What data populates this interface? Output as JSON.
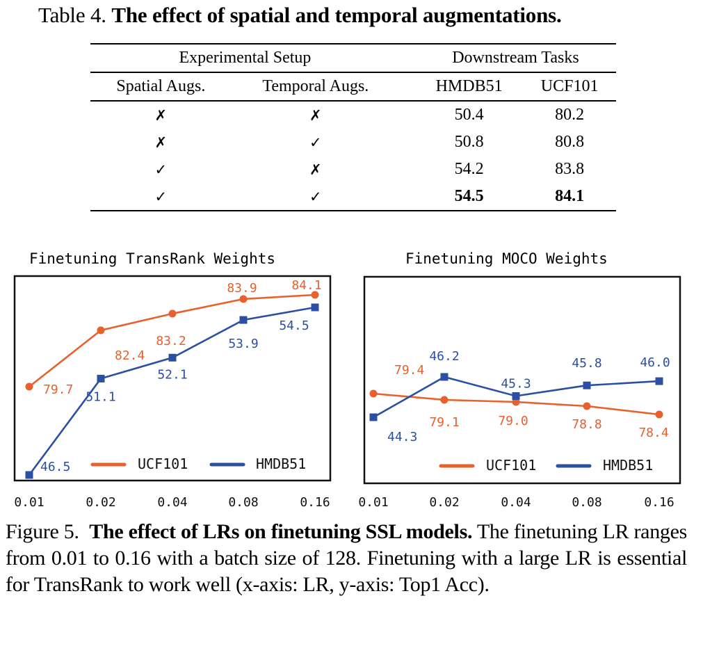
{
  "table": {
    "caption_label": "Table 4.",
    "caption_title": "The effect of spatial and temporal augmentations.",
    "group_headers": [
      "Experimental Setup",
      "Downstream Tasks"
    ],
    "column_headers": [
      "Spatial Augs.",
      "Temporal Augs.",
      "HMDB51",
      "UCF101"
    ],
    "rows": [
      {
        "spatial": "✗",
        "temporal": "✗",
        "hmdb51": "50.4",
        "ucf101": "80.2",
        "bold": false
      },
      {
        "spatial": "✗",
        "temporal": "✓",
        "hmdb51": "50.8",
        "ucf101": "80.8",
        "bold": false
      },
      {
        "spatial": "✓",
        "temporal": "✗",
        "hmdb51": "54.2",
        "ucf101": "83.8",
        "bold": false
      },
      {
        "spatial": "✓",
        "temporal": "✓",
        "hmdb51": "54.5",
        "ucf101": "84.1",
        "bold": true
      }
    ]
  },
  "colors": {
    "ucf101": "#e8602c",
    "hmdb51": "#2b4fa3"
  },
  "chart_data": [
    {
      "type": "line",
      "title": "Finetuning TransRank Weights",
      "xlabel": "LR",
      "ylabel": "Top1 Acc",
      "categories": [
        "0.01",
        "0.02",
        "0.04",
        "0.08",
        "0.16"
      ],
      "legend": [
        "UCF101",
        "HMDB51"
      ],
      "legend_position": "bottom-right",
      "grid": false,
      "series": [
        {
          "name": "UCF101",
          "values": [
            79.7,
            82.4,
            83.2,
            83.9,
            84.1
          ],
          "labels": [
            "79.7",
            "82.4",
            "83.2",
            "83.9",
            "84.1"
          ],
          "marker": "circle"
        },
        {
          "name": "HMDB51",
          "values": [
            46.5,
            51.1,
            52.1,
            53.9,
            54.5
          ],
          "labels": [
            "46.5",
            "51.1",
            "52.1",
            "53.9",
            "54.5"
          ],
          "marker": "square"
        }
      ]
    },
    {
      "type": "line",
      "title": "Finetuning MOCO Weights",
      "xlabel": "LR",
      "ylabel": "Top1 Acc",
      "categories": [
        "0.01",
        "0.02",
        "0.04",
        "0.08",
        "0.16"
      ],
      "legend": [
        "UCF101",
        "HMDB51"
      ],
      "legend_position": "bottom-right",
      "grid": false,
      "series": [
        {
          "name": "UCF101",
          "values": [
            79.4,
            79.1,
            79.0,
            78.8,
            78.4
          ],
          "labels": [
            "79.4",
            "79.1",
            "79.0",
            "78.8",
            "78.4"
          ],
          "marker": "circle"
        },
        {
          "name": "HMDB51",
          "values": [
            44.3,
            46.2,
            45.3,
            45.8,
            46.0
          ],
          "labels": [
            "44.3",
            "46.2",
            "45.3",
            "45.8",
            "46.0"
          ],
          "marker": "square"
        }
      ]
    }
  ],
  "figure": {
    "caption_label": "Figure 5.",
    "caption_title": "The effect of LRs on finetuning SSL models.",
    "caption_body": "The finetuning LR ranges from 0.01 to 0.16 with a batch size of 128. Finetuning with a large LR is essential for TransRank to work well (x-axis: LR, y-axis: Top1 Acc)."
  }
}
